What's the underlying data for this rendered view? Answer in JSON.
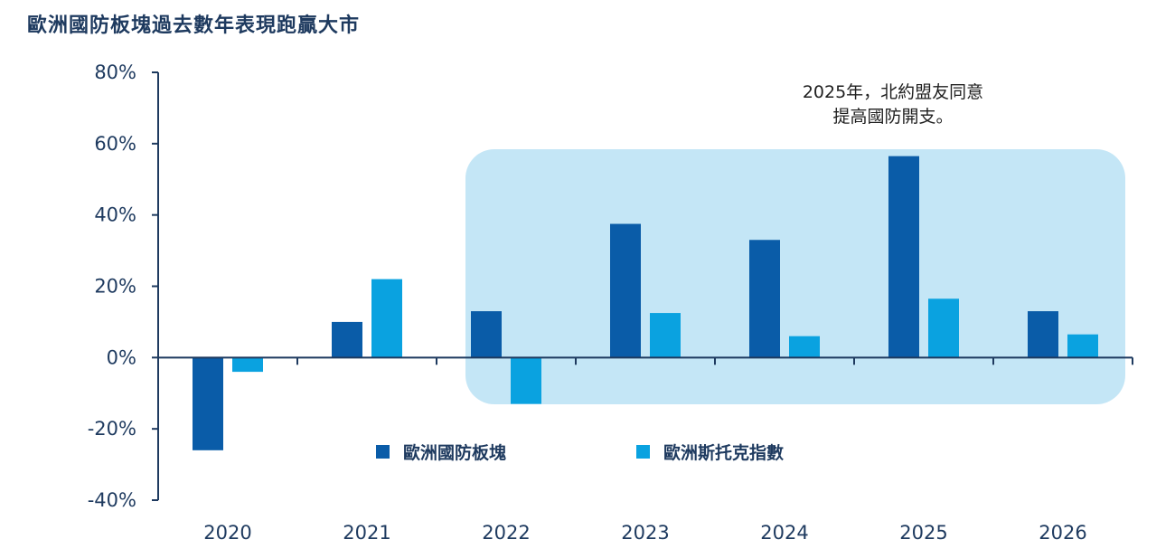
{
  "chart_data": {
    "type": "bar",
    "title": "歐洲國防板塊過去數年表現跑贏大市",
    "categories": [
      "2020",
      "2021",
      "2022",
      "2023",
      "2024",
      "2025",
      "2026"
    ],
    "series": [
      {
        "name": "歐洲國防板塊",
        "color": "#0a5ca8",
        "values": [
          -26,
          10,
          13,
          37.5,
          33,
          56.5,
          13
        ]
      },
      {
        "name": "歐洲斯托克指數",
        "color": "#0aa2e0",
        "values": [
          -4,
          22,
          -13,
          12.5,
          6,
          16.5,
          6.5
        ]
      }
    ],
    "ylim": [
      -40,
      80
    ],
    "yticks": [
      -40,
      -20,
      0,
      20,
      40,
      60,
      80
    ],
    "ytick_labels": [
      "-40%",
      "-20%",
      "0%",
      "20%",
      "40%",
      "60%",
      "80%"
    ],
    "xlabel": "",
    "ylabel": "",
    "grid": false,
    "legend_position": "bottom-center",
    "annotation": {
      "lines": [
        "2025年，北約盟友同意",
        "提高國防開支。"
      ],
      "highlight_from": "2022",
      "highlight_to": "2026",
      "highlight_color": "#c4e6f6"
    }
  }
}
